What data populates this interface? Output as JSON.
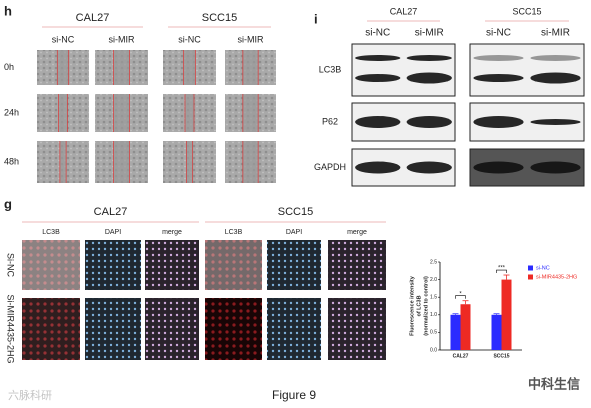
{
  "panel_h": {
    "label": "h",
    "groups": [
      {
        "title": "CAL27",
        "columns": [
          "si-NC",
          "si-MIR"
        ]
      },
      {
        "title": "SCC15",
        "columns": [
          "si-NC",
          "si-MIR"
        ]
      }
    ],
    "rows": [
      "0h",
      "24h",
      "48h"
    ]
  },
  "panel_i": {
    "label": "i",
    "groups": [
      {
        "title": "CAL27",
        "columns": [
          "si-NC",
          "si-MIR"
        ]
      },
      {
        "title": "SCC15",
        "columns": [
          "si-NC",
          "si-MIR"
        ]
      }
    ],
    "rows": [
      "LC3B",
      "P62",
      "GAPDH"
    ]
  },
  "panel_g": {
    "label": "g",
    "groups": [
      {
        "title": "CAL27",
        "columns": [
          "LC3B",
          "DAPI",
          "merge"
        ]
      },
      {
        "title": "SCC15",
        "columns": [
          "LC3B",
          "DAPI",
          "merge"
        ]
      }
    ],
    "rows": [
      "Si-NC",
      "Si-MIR4435-2HG"
    ]
  },
  "chart_data": {
    "type": "bar",
    "ylabel": [
      "Fluorescence intensity",
      "of LC3B",
      "(normalized to control)"
    ],
    "categories": [
      "CAL27",
      "SCC15"
    ],
    "series": [
      {
        "name": "si-NC",
        "color": "#2b2bff",
        "values": [
          1,
          1
        ],
        "errors": [
          0.03,
          0.03
        ]
      },
      {
        "name": "si-MIR4435-2HG",
        "color": "#ee2a24",
        "values": [
          1.3,
          2.0
        ],
        "errors": [
          0.1,
          0.13
        ]
      }
    ],
    "annotations": [
      "*",
      "***"
    ],
    "ylim": [
      0,
      2.5
    ],
    "yticks": [
      {
        "value": 0,
        "label": "0.0"
      },
      {
        "value": 0.5,
        "label": "0.5"
      },
      {
        "value": 1,
        "label": "1.0"
      },
      {
        "value": 1.5,
        "label": "1.5"
      },
      {
        "value": 2,
        "label": "2.0"
      },
      {
        "value": 2.5,
        "label": "2.5"
      }
    ]
  },
  "caption": "Figure 9",
  "watermarks": [
    "六脉科研",
    "中科生信"
  ]
}
